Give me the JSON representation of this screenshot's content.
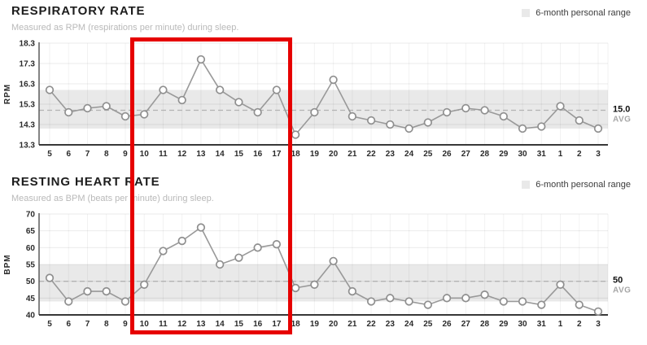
{
  "colors": {
    "highlight": "#e60000",
    "series": "#999999",
    "marker_fill": "#ffffff",
    "marker_stroke": "#8f8f8f",
    "band": "#e9e9e9",
    "avg_line": "#b3b3b3",
    "tick_text": "#2b2b2b",
    "avg_value_text": "#111111",
    "avg_sublabel_text": "#a6a6a6"
  },
  "highlight": {
    "start_day": "10",
    "end_day": "17"
  },
  "chart_data": [
    {
      "type": "line",
      "title": "RESPIRATORY RATE",
      "subtitle": "Measured as RPM (respirations per minute) during sleep.",
      "legend": "6-month personal range",
      "legend_position": "top-right",
      "ylabel": "RPM",
      "xlabel": "",
      "x": [
        "5",
        "6",
        "7",
        "8",
        "9",
        "10",
        "11",
        "12",
        "13",
        "14",
        "15",
        "16",
        "17",
        "18",
        "19",
        "20",
        "21",
        "22",
        "23",
        "24",
        "25",
        "26",
        "27",
        "28",
        "29",
        "30",
        "31",
        "1",
        "2",
        "3"
      ],
      "values": [
        16.0,
        14.9,
        15.1,
        15.2,
        14.7,
        14.8,
        16.0,
        15.5,
        17.5,
        16.0,
        15.4,
        14.9,
        16.0,
        13.8,
        14.9,
        16.5,
        14.7,
        14.5,
        14.3,
        14.1,
        14.4,
        14.9,
        15.1,
        15.0,
        14.7,
        14.1,
        14.2,
        15.2,
        14.5,
        14.1
      ],
      "ylim": [
        13.3,
        18.3
      ],
      "yticks": [
        "18.3",
        "17.3",
        "16.3",
        "15.3",
        "14.3",
        "13.3"
      ],
      "band": [
        14.1,
        16.0
      ],
      "avg_label": "15.0",
      "avg_sublabel": "AVG",
      "grid": true
    },
    {
      "type": "line",
      "title": "RESTING HEART RATE",
      "subtitle": "Measured as BPM (beats per minute) during sleep.",
      "legend": "6-month personal range",
      "legend_position": "top-right",
      "ylabel": "BPM",
      "xlabel": "",
      "x": [
        "5",
        "6",
        "7",
        "8",
        "9",
        "10",
        "11",
        "12",
        "13",
        "14",
        "15",
        "16",
        "17",
        "18",
        "19",
        "20",
        "21",
        "22",
        "23",
        "24",
        "25",
        "26",
        "27",
        "28",
        "29",
        "30",
        "31",
        "1",
        "2",
        "3"
      ],
      "values": [
        51,
        44,
        47,
        47,
        44,
        49,
        59,
        62,
        66,
        55,
        57,
        60,
        61,
        48,
        49,
        56,
        47,
        44,
        45,
        44,
        43,
        45,
        45,
        46,
        44,
        44,
        43,
        49,
        43,
        41
      ],
      "ylim": [
        40,
        70
      ],
      "yticks": [
        "70",
        "65",
        "60",
        "55",
        "50",
        "45",
        "40"
      ],
      "band": [
        44,
        55
      ],
      "avg_label": "50",
      "avg_sublabel": "AVG",
      "grid": true
    }
  ]
}
